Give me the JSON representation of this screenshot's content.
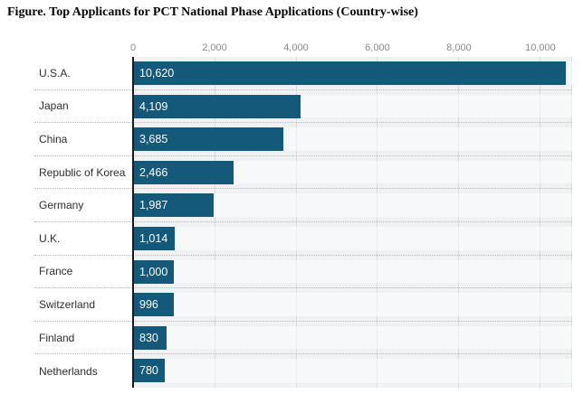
{
  "figure": {
    "title": "Figure. Top Applicants for PCT National Phase Applications (Country-wise)"
  },
  "chart_data": {
    "type": "bar",
    "orientation": "horizontal",
    "title": "Figure. Top Applicants for PCT National Phase Applications (Country-wise)",
    "categories": [
      "U.S.A.",
      "Japan",
      "China",
      "Republic of Korea",
      "Germany",
      "U.K.",
      "France",
      "Switzerland",
      "Finland",
      "Netherlands"
    ],
    "values": [
      10620,
      4109,
      3685,
      2466,
      1987,
      1014,
      1000,
      996,
      830,
      780
    ],
    "value_labels": [
      "10,620",
      "4,109",
      "3,685",
      "2,466",
      "1,987",
      "1,014",
      "1,000",
      "996",
      "830",
      "780"
    ],
    "x_ticks": {
      "values": [
        0,
        2000,
        4000,
        6000,
        8000,
        10000
      ],
      "labels": [
        "0",
        "2,000",
        "4,000",
        "6,000",
        "8,000",
        "10,000"
      ]
    },
    "xlim": [
      0,
      10780
    ],
    "grid": true,
    "legend": false,
    "tick_position": "top",
    "value_label_position": "inside-start",
    "colors": {
      "bar": "#15597a",
      "plot_bg": "#eff1f3",
      "gridline": "#d9dcde",
      "separator": "#bfb9ae",
      "zero_axis": "#1b1b1b",
      "tick_label": "#8b8b8b",
      "category_label": "#2e2e2e",
      "value_label": "#ffffff"
    }
  }
}
